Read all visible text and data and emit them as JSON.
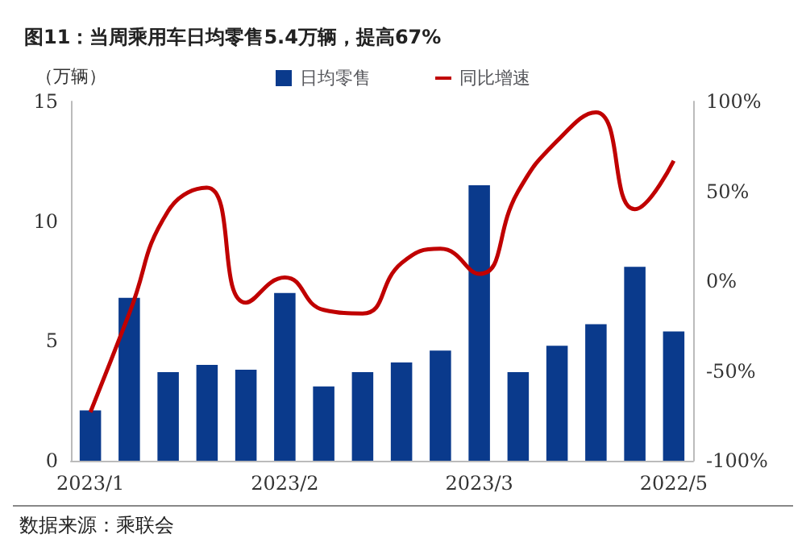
{
  "chart_data": {
    "type": "bar",
    "title": "图11：当周乘用车日均零售5.4万辆，提高67%",
    "ylabel": "（万辆）",
    "categories": [
      "2023/1",
      null,
      null,
      null,
      null,
      "2023/2",
      null,
      null,
      null,
      null,
      "2023/3",
      null,
      null,
      null,
      null,
      "2022/5"
    ],
    "series": [
      {
        "name": "日均零售",
        "color": "#0a3a8c",
        "values": [
          2.1,
          6.8,
          3.7,
          4.0,
          3.8,
          7.0,
          3.1,
          3.7,
          4.1,
          4.6,
          11.5,
          3.7,
          4.8,
          5.7,
          8.1,
          5.4
        ]
      },
      {
        "name": "同比增速",
        "type": "line",
        "axis": "y2",
        "color": "#c00000",
        "values": [
          -73,
          -18,
          39,
          52,
          -12,
          2,
          -16,
          -18,
          10,
          18,
          4,
          50,
          78,
          94,
          40,
          67
        ]
      }
    ],
    "ylim": [
      0,
      15
    ],
    "yticks": [
      0,
      5,
      10,
      15
    ],
    "y2lim": [
      -100,
      100
    ],
    "y2ticks": [
      {
        "value": -100,
        "label": "-100%"
      },
      {
        "value": -50,
        "label": "-50%"
      },
      {
        "value": 0,
        "label": "0%"
      },
      {
        "value": 50,
        "label": "50%"
      },
      {
        "value": 100,
        "label": "100%"
      }
    ],
    "legend": "top",
    "grid": false,
    "marker": "none",
    "line_style": "solid",
    "annotations": [
      "数据来源：乘联会"
    ]
  }
}
